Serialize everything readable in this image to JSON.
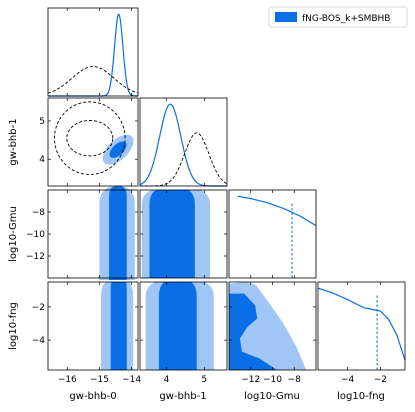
{
  "colors": {
    "dark": "#0a6fe6",
    "light": "#9fc6f5",
    "dashed": "#000000"
  },
  "legend": {
    "label": "fNG-BOS_k+SMBHB",
    "placement": "top-right"
  },
  "chart_data": {
    "type": "corner",
    "parameters": [
      "gw-bhb-0",
      "gw-bhb-1",
      "log10-Gmu",
      "log10-fng"
    ],
    "ranges": {
      "gw-bhb-0": [
        -16.6,
        -13.8
      ],
      "gw-bhb-1": [
        3.3,
        5.6
      ],
      "log10-Gmu": [
        -14,
        -6
      ],
      "log10-fng": [
        -5.8,
        -0.5
      ]
    },
    "ticks": {
      "gw-bhb-0": [
        -16,
        -15,
        -14
      ],
      "gw-bhb-1": [
        4,
        5
      ],
      "log10-Gmu": [
        -12,
        -10,
        -8
      ],
      "log10-fng": [
        -4,
        -2
      ]
    },
    "tick_labels": {
      "gw-bhb-0": [
        "−16",
        "−15",
        "−14"
      ],
      "gw-bhb-1": [
        "4",
        "5"
      ],
      "log10-Gmu": [
        "−12",
        "−10",
        "−8"
      ],
      "log10-fng": [
        "−4",
        "−2"
      ]
    },
    "marginals": {
      "gw-bhb-0": {
        "main": {
          "peak": -14.4,
          "width": 0.13
        },
        "reference": {
          "peak": -15.2,
          "width": 0.65,
          "height": 0.36
        }
      },
      "gw-bhb-1": {
        "main": {
          "peak": 4.1,
          "width": 0.28
        },
        "reference": {
          "peak": 4.8,
          "width": 0.32,
          "height": 0.65
        }
      },
      "log10-Gmu": {
        "main": {
          "x": [
            -13.2,
            -12.0,
            -10.5,
            -9.0,
            -7.5,
            -6.0
          ],
          "y": [
            1.0,
            0.97,
            0.92,
            0.85,
            0.76,
            0.64
          ]
        },
        "upper_limit": -8.2
      },
      "log10-fng": {
        "main": {
          "x": [
            -5.8,
            -5.0,
            -4.0,
            -3.0,
            -2.5,
            -2.0,
            -1.5,
            -1.0,
            -0.5
          ],
          "y": [
            1.0,
            0.95,
            0.86,
            0.76,
            0.74,
            0.72,
            0.62,
            0.43,
            0.12
          ]
        },
        "upper_limit": -2.2
      }
    },
    "pairs": [
      {
        "x": "gw-bhb-0",
        "y": "gw-bhb-1",
        "main": {
          "center": [
            -14.42,
            4.25
          ],
          "rx": 0.28,
          "ry": 0.55,
          "angle": -55
        },
        "reference": {
          "center": [
            -15.3,
            4.55
          ],
          "rx": 1.1,
          "ry": 0.95
        }
      },
      {
        "x": "gw-bhb-0",
        "y": "log10-Gmu",
        "inner": [
          -14.7,
          -14.15
        ],
        "outer": [
          -15.0,
          -13.9
        ]
      },
      {
        "x": "gw-bhb-1",
        "y": "log10-Gmu",
        "inner": [
          3.55,
          4.75
        ],
        "outer": [
          3.35,
          5.15
        ]
      },
      {
        "x": "gw-bhb-0",
        "y": "log10-fng",
        "inner": [
          -14.65,
          -14.15
        ],
        "outer": [
          -14.95,
          -13.95
        ]
      },
      {
        "x": "gw-bhb-1",
        "y": "log10-fng",
        "inner": [
          3.8,
          4.8
        ],
        "outer": [
          3.45,
          5.25
        ]
      },
      {
        "x": "log10-Gmu",
        "y": "log10-fng",
        "shape": "exclusion"
      }
    ]
  }
}
